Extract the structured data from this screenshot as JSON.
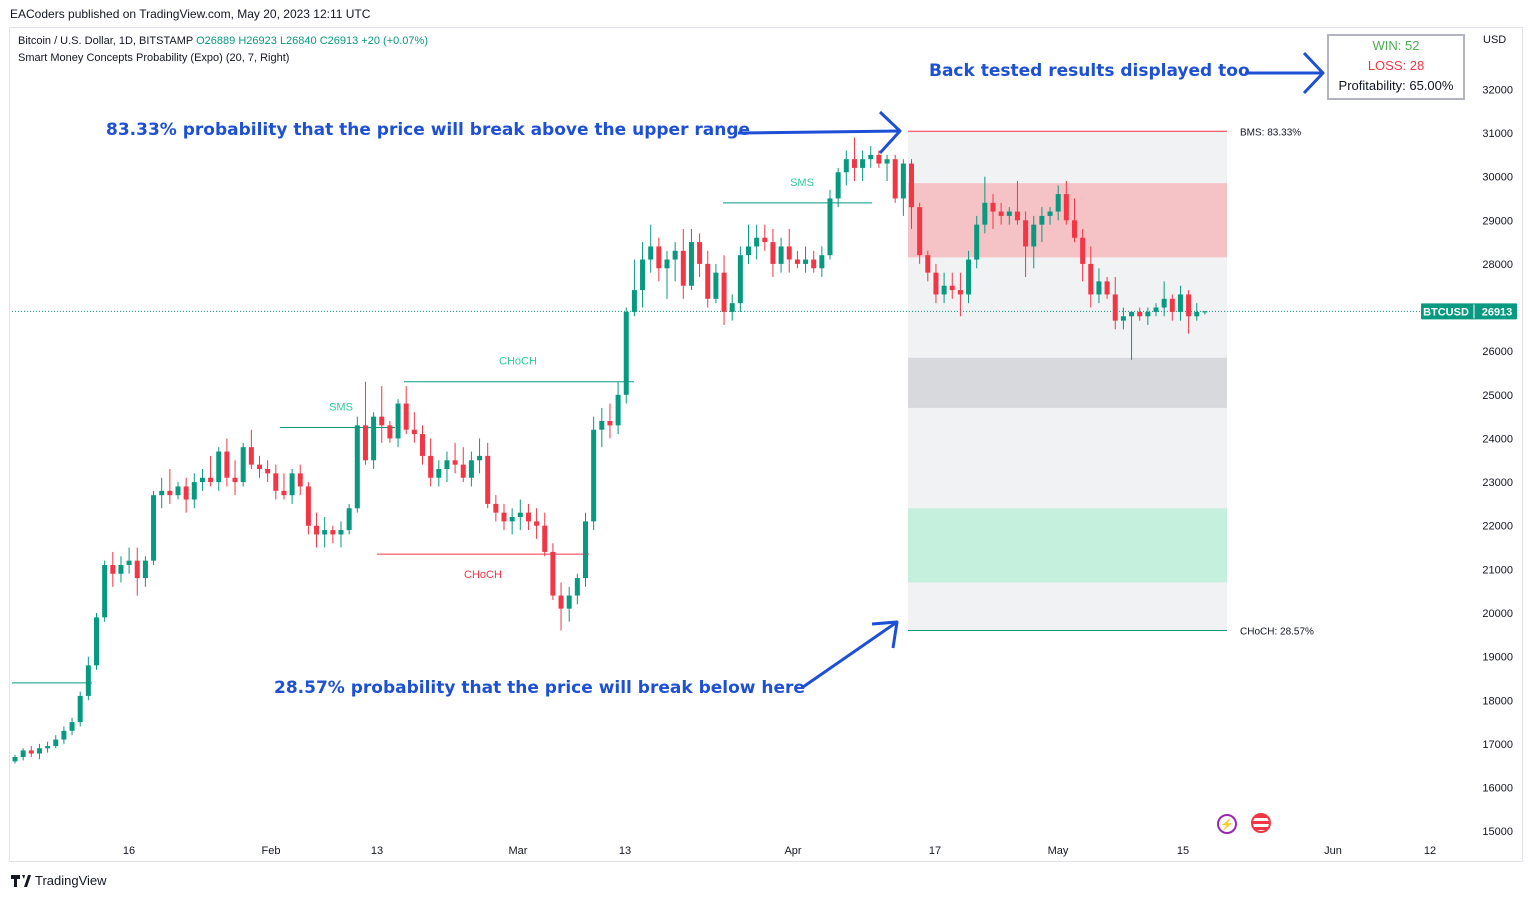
{
  "header": {
    "published": "EACoders published on TradingView.com, May 20, 2023 12:11 UTC",
    "symbol_line": "Bitcoin / U.S. Dollar, 1D, BITSTAMP",
    "open": "O26889",
    "high": "H26923",
    "low": "L26840",
    "close": "C26913",
    "change": "+20 (+0.07%)",
    "indicator": "Smart Money Concepts Probability (Expo) (20, 7, Right)"
  },
  "footer": {
    "brand": "TradingView"
  },
  "stats_box": {
    "win": "WIN: 52",
    "loss": "LOSS: 28",
    "profitability": "Profitability: 65.00%"
  },
  "annotations": {
    "top": "83.33% probability that the price will break above the upper range",
    "bottom": "28.57% probability that the price will break below here",
    "stats": "Back tested results displayed too"
  },
  "colors": {
    "up": "#089981",
    "down": "#f23645",
    "annotation": "#1e50d6",
    "win": "#4caf50",
    "loss": "#f23645"
  },
  "icons": [
    "lightning-icon",
    "us-flag-icon"
  ],
  "chart_data": {
    "type": "candlestick",
    "currency_label": "USD",
    "y_ticks": [
      15000,
      16000,
      17000,
      18000,
      19000,
      20000,
      21000,
      22000,
      23000,
      24000,
      25000,
      26000,
      27000,
      28000,
      29000,
      30000,
      31000,
      32000
    ],
    "x_ticks": [
      "16",
      "Feb",
      "13",
      "Mar",
      "13",
      "Apr",
      "17",
      "May",
      "15",
      "Jun",
      "12"
    ],
    "last_price_label": "BTCUSD",
    "last_price": 26913,
    "levels": [
      {
        "label": "BMS: 83.33%",
        "price": 31040,
        "color": "#f23645"
      },
      {
        "label": "CHoCH: 28.57%",
        "price": 19600,
        "color": "#089981"
      }
    ],
    "zones": [
      {
        "top": 29850,
        "bottom": 28150,
        "color": "#f5c2c6"
      },
      {
        "top": 25850,
        "bottom": 24700,
        "color": "#d8d9dc"
      },
      {
        "top": 22400,
        "bottom": 20700,
        "color": "#c5f0dd"
      }
    ],
    "structure_labels": [
      {
        "text": "SMS",
        "price": 24250,
        "color": "#2ecc9a"
      },
      {
        "text": "CHoCH",
        "price": 25350,
        "color": "#2ecc9a"
      },
      {
        "text": "CHoCH",
        "price": 21400,
        "color": "#f23645"
      },
      {
        "text": "SMS",
        "price": 29400,
        "color": "#2ecc9a"
      }
    ],
    "candles": [
      [
        16600,
        16750,
        16550,
        16700
      ],
      [
        16700,
        16900,
        16620,
        16850
      ],
      [
        16850,
        16950,
        16700,
        16780
      ],
      [
        16780,
        17000,
        16650,
        16900
      ],
      [
        16900,
        17050,
        16800,
        16950
      ],
      [
        16950,
        17200,
        16900,
        17100
      ],
      [
        17100,
        17400,
        17000,
        17300
      ],
      [
        17300,
        17600,
        17200,
        17500
      ],
      [
        17500,
        18200,
        17400,
        18100
      ],
      [
        18100,
        19000,
        18000,
        18800
      ],
      [
        18800,
        20000,
        18700,
        19900
      ],
      [
        19900,
        21200,
        19800,
        21100
      ],
      [
        21100,
        21400,
        20600,
        20900
      ],
      [
        20900,
        21300,
        20700,
        21100
      ],
      [
        21100,
        21500,
        20900,
        21200
      ],
      [
        21200,
        21500,
        20400,
        20800
      ],
      [
        20800,
        21300,
        20600,
        21200
      ],
      [
        21200,
        22800,
        21100,
        22700
      ],
      [
        22700,
        23100,
        22400,
        22800
      ],
      [
        22800,
        23300,
        22500,
        22700
      ],
      [
        22700,
        23000,
        22600,
        22900
      ],
      [
        22900,
        23100,
        22300,
        22600
      ],
      [
        22600,
        23200,
        22400,
        23000
      ],
      [
        23000,
        23300,
        22800,
        23100
      ],
      [
        23100,
        23600,
        22900,
        23000
      ],
      [
        23000,
        23800,
        22800,
        23700
      ],
      [
        23700,
        24000,
        22900,
        23100
      ],
      [
        23100,
        23500,
        22700,
        23000
      ],
      [
        23000,
        23900,
        22900,
        23800
      ],
      [
        23800,
        24200,
        23300,
        23400
      ],
      [
        23400,
        23600,
        23100,
        23300
      ],
      [
        23300,
        23500,
        23000,
        23200
      ],
      [
        23200,
        23400,
        22600,
        22800
      ],
      [
        22800,
        23200,
        22600,
        22700
      ],
      [
        22700,
        23300,
        22500,
        23200
      ],
      [
        23200,
        23400,
        22700,
        22900
      ],
      [
        22900,
        23000,
        21800,
        22000
      ],
      [
        22000,
        22300,
        21500,
        21800
      ],
      [
        21800,
        22200,
        21500,
        21900
      ],
      [
        21900,
        22000,
        21600,
        21800
      ],
      [
        21800,
        22100,
        21500,
        21900
      ],
      [
        21900,
        22500,
        21800,
        22400
      ],
      [
        22400,
        24500,
        22300,
        24300
      ],
      [
        24300,
        25300,
        23400,
        23500
      ],
      [
        23500,
        24600,
        23300,
        24500
      ],
      [
        24500,
        25200,
        23900,
        24300
      ],
      [
        24300,
        24400,
        23900,
        24000
      ],
      [
        24000,
        24900,
        23800,
        24800
      ],
      [
        24800,
        25200,
        24100,
        24200
      ],
      [
        24200,
        24600,
        23900,
        24100
      ],
      [
        24100,
        24300,
        23400,
        23600
      ],
      [
        23600,
        24000,
        22900,
        23100
      ],
      [
        23100,
        23500,
        22900,
        23300
      ],
      [
        23300,
        23700,
        23000,
        23500
      ],
      [
        23500,
        23900,
        23200,
        23400
      ],
      [
        23400,
        23800,
        23000,
        23100
      ],
      [
        23100,
        23700,
        22900,
        23500
      ],
      [
        23500,
        24000,
        23200,
        23600
      ],
      [
        23600,
        23900,
        22400,
        22500
      ],
      [
        22500,
        22700,
        22100,
        22300
      ],
      [
        22300,
        22500,
        21900,
        22100
      ],
      [
        22100,
        22400,
        21800,
        22200
      ],
      [
        22200,
        22600,
        21900,
        22300
      ],
      [
        22300,
        22500,
        21900,
        22100
      ],
      [
        22100,
        22400,
        21700,
        22000
      ],
      [
        22000,
        22300,
        21300,
        21400
      ],
      [
        21400,
        21600,
        20300,
        20400
      ],
      [
        20400,
        20700,
        19600,
        20100
      ],
      [
        20100,
        20600,
        19800,
        20400
      ],
      [
        20400,
        20900,
        20200,
        20800
      ],
      [
        20800,
        22300,
        20600,
        22100
      ],
      [
        22100,
        24500,
        21900,
        24200
      ],
      [
        24200,
        24700,
        23800,
        24400
      ],
      [
        24400,
        24800,
        24000,
        24300
      ],
      [
        24300,
        25300,
        24100,
        25000
      ],
      [
        25000,
        27000,
        24800,
        26900
      ],
      [
        26900,
        28100,
        26800,
        27400
      ],
      [
        27400,
        28500,
        27000,
        28100
      ],
      [
        28100,
        28900,
        27800,
        28400
      ],
      [
        28400,
        28600,
        27600,
        27900
      ],
      [
        27900,
        28300,
        27200,
        28100
      ],
      [
        28100,
        28500,
        27600,
        28300
      ],
      [
        28300,
        28800,
        27200,
        27500
      ],
      [
        27500,
        28800,
        27400,
        28500
      ],
      [
        28500,
        28700,
        27700,
        28000
      ],
      [
        28000,
        28300,
        27000,
        27200
      ],
      [
        27200,
        28000,
        27100,
        27800
      ],
      [
        27800,
        28200,
        26600,
        26900
      ],
      [
        26900,
        27300,
        26700,
        27100
      ],
      [
        27100,
        28400,
        26900,
        28200
      ],
      [
        28200,
        28900,
        28000,
        28400
      ],
      [
        28400,
        28900,
        28100,
        28600
      ],
      [
        28600,
        28900,
        28300,
        28500
      ],
      [
        28500,
        28800,
        27700,
        28000
      ],
      [
        28000,
        28600,
        27800,
        28400
      ],
      [
        28400,
        28800,
        27800,
        28100
      ],
      [
        28100,
        28300,
        27900,
        28000
      ],
      [
        28000,
        28400,
        27800,
        28100
      ],
      [
        28100,
        28300,
        27800,
        27900
      ],
      [
        27900,
        28400,
        27700,
        28200
      ],
      [
        28200,
        29700,
        28100,
        29500
      ],
      [
        29500,
        30200,
        29300,
        30100
      ],
      [
        30100,
        30600,
        29800,
        30400
      ],
      [
        30400,
        30900,
        29900,
        30200
      ],
      [
        30200,
        30600,
        29900,
        30400
      ],
      [
        30400,
        30700,
        30200,
        30500
      ],
      [
        30500,
        30600,
        30200,
        30300
      ],
      [
        30300,
        30500,
        29900,
        30400
      ],
      [
        30400,
        30500,
        29400,
        29500
      ],
      [
        29500,
        30400,
        29100,
        30300
      ],
      [
        30300,
        30400,
        28800,
        29300
      ],
      [
        29300,
        29400,
        28000,
        28200
      ],
      [
        28200,
        28300,
        27600,
        27800
      ],
      [
        27800,
        28000,
        27100,
        27300
      ],
      [
        27300,
        27800,
        27100,
        27500
      ],
      [
        27500,
        27800,
        27200,
        27400
      ],
      [
        27400,
        27800,
        26800,
        27300
      ],
      [
        27300,
        28300,
        27100,
        28100
      ],
      [
        28100,
        29100,
        27900,
        28900
      ],
      [
        28900,
        30000,
        28700,
        29400
      ],
      [
        29400,
        29600,
        28800,
        29200
      ],
      [
        29200,
        29400,
        28900,
        29100
      ],
      [
        29100,
        29300,
        28900,
        29200
      ],
      [
        29200,
        29900,
        28900,
        29000
      ],
      [
        29000,
        29200,
        27700,
        28400
      ],
      [
        28400,
        29100,
        27900,
        28900
      ],
      [
        28900,
        29300,
        28500,
        29100
      ],
      [
        29100,
        29300,
        28900,
        29200
      ],
      [
        29200,
        29800,
        29000,
        29600
      ],
      [
        29600,
        29900,
        28900,
        29000
      ],
      [
        29000,
        29500,
        28500,
        28600
      ],
      [
        28600,
        28800,
        27600,
        28000
      ],
      [
        28000,
        28400,
        27000,
        27300
      ],
      [
        27300,
        27900,
        27100,
        27600
      ],
      [
        27600,
        27700,
        27200,
        27300
      ],
      [
        27300,
        27700,
        26500,
        26700
      ],
      [
        26700,
        27000,
        26500,
        26800
      ],
      [
        26800,
        26900,
        25800,
        26900
      ],
      [
        26900,
        27000,
        26700,
        26800
      ],
      [
        26800,
        27000,
        26600,
        26900
      ],
      [
        26900,
        27100,
        26800,
        27000
      ],
      [
        27000,
        27600,
        26800,
        27200
      ],
      [
        27200,
        27300,
        26700,
        26900
      ],
      [
        26900,
        27500,
        26700,
        27300
      ],
      [
        27300,
        27400,
        26400,
        26800
      ],
      [
        26800,
        27100,
        26700,
        26900
      ],
      [
        26889,
        26923,
        26840,
        26913
      ]
    ]
  }
}
